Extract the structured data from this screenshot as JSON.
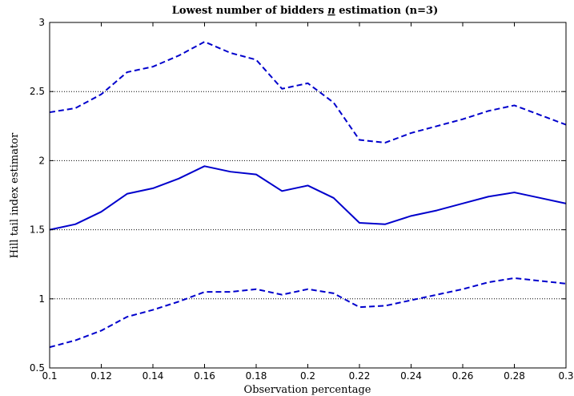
{
  "chart_data": {
    "type": "line",
    "title": "Lowest number of bidders n estimation (n=3)",
    "title_parts": {
      "before": "Lowest number of bidders ",
      "symbol": "n",
      "after": " estimation (n=3)"
    },
    "xlabel": "Observation percentage",
    "ylabel": "Hill tail index estimator",
    "xlim": [
      0.1,
      0.3
    ],
    "ylim": [
      0.5,
      3
    ],
    "xticks": [
      0.1,
      0.12,
      0.14,
      0.16,
      0.18,
      0.2,
      0.22,
      0.24,
      0.26,
      0.28,
      0.3
    ],
    "xtick_labels": [
      "0.1",
      "0.12",
      "0.14",
      "0.16",
      "0.18",
      "0.2",
      "0.22",
      "0.24",
      "0.26",
      "0.28",
      "0.3"
    ],
    "yticks": [
      0.5,
      1,
      1.5,
      2,
      2.5,
      3
    ],
    "ytick_labels": [
      "0.5",
      "1",
      "1.5",
      "2",
      "2.5",
      "3"
    ],
    "ygrid": [
      1,
      1.5,
      2,
      2.5
    ],
    "grid": "horizontal dotted",
    "x": [
      0.1,
      0.11,
      0.12,
      0.13,
      0.14,
      0.15,
      0.16,
      0.17,
      0.18,
      0.19,
      0.2,
      0.21,
      0.22,
      0.23,
      0.24,
      0.25,
      0.26,
      0.27,
      0.28,
      0.29,
      0.3
    ],
    "series": [
      {
        "style": "dashed",
        "color": "#0000cc",
        "values": [
          2.35,
          2.38,
          2.48,
          2.64,
          2.68,
          2.76,
          2.86,
          2.78,
          2.73,
          2.52,
          2.56,
          2.42,
          2.15,
          2.13,
          2.2,
          2.25,
          2.3,
          2.36,
          2.4,
          2.33,
          2.26
        ]
      },
      {
        "style": "solid",
        "color": "#0000cc",
        "values": [
          1.5,
          1.54,
          1.63,
          1.76,
          1.8,
          1.87,
          1.96,
          1.92,
          1.9,
          1.78,
          1.82,
          1.73,
          1.55,
          1.54,
          1.6,
          1.64,
          1.69,
          1.74,
          1.77,
          1.73,
          1.69
        ]
      },
      {
        "style": "dashed",
        "color": "#0000cc",
        "values": [
          0.65,
          0.7,
          0.77,
          0.87,
          0.92,
          0.98,
          1.05,
          1.05,
          1.07,
          1.03,
          1.07,
          1.04,
          0.94,
          0.95,
          0.99,
          1.03,
          1.07,
          1.12,
          1.15,
          1.13,
          1.11
        ]
      }
    ]
  }
}
